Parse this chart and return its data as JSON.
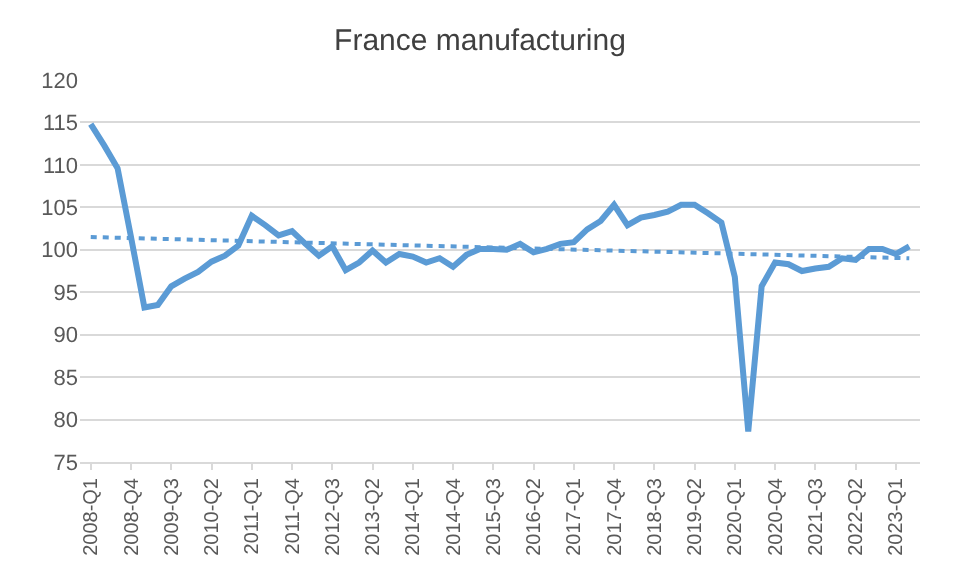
{
  "chart_data": {
    "type": "line",
    "title": "France manufacturing",
    "categories": [
      "2008-Q1",
      null,
      null,
      "2008-Q4",
      null,
      null,
      "2009-Q3",
      null,
      null,
      "2010-Q2",
      null,
      null,
      "2011-Q1",
      null,
      null,
      "2011-Q4",
      null,
      null,
      "2012-Q3",
      null,
      null,
      "2013-Q2",
      null,
      null,
      "2014-Q1",
      null,
      null,
      "2014-Q4",
      null,
      null,
      "2015-Q3",
      null,
      null,
      "2016-Q2",
      null,
      null,
      "2017-Q1",
      null,
      null,
      "2017-Q4",
      null,
      null,
      "2018-Q3",
      null,
      null,
      "2019-Q2",
      null,
      null,
      "2020-Q1",
      null,
      null,
      "2020-Q4",
      null,
      null,
      "2021-Q3",
      null,
      null,
      "2022-Q2",
      null,
      null,
      "2023-Q1",
      null
    ],
    "series": [
      {
        "color": "#5b9bd5",
        "line_style": "solid",
        "values": [
          114.8,
          112.3,
          109.6,
          101.5,
          93.2,
          93.5,
          95.7,
          96.6,
          97.4,
          98.6,
          99.3,
          100.5,
          104.0,
          102.9,
          101.7,
          102.2,
          100.7,
          99.3,
          100.4,
          97.6,
          98.5,
          99.9,
          98.5,
          99.5,
          99.2,
          98.5,
          99.0,
          98.0,
          99.4,
          100.1,
          100.1,
          100.0,
          100.7,
          99.7,
          100.1,
          100.7,
          100.9,
          102.4,
          103.4,
          105.3,
          102.9,
          103.8,
          104.1,
          104.5,
          105.3,
          105.3,
          104.3,
          103.2,
          96.8,
          78.6,
          95.7,
          98.5,
          98.3,
          97.5,
          97.8,
          98.0,
          99.0,
          98.8,
          100.1,
          100.1,
          99.5,
          100.4
        ]
      },
      {
        "color": "#5b9bd5",
        "line_style": "dotted",
        "values": [
          101.5,
          null,
          null,
          null,
          null,
          null,
          null,
          null,
          null,
          null,
          null,
          null,
          null,
          null,
          null,
          null,
          null,
          null,
          null,
          null,
          null,
          null,
          null,
          null,
          null,
          null,
          null,
          null,
          null,
          null,
          null,
          null,
          null,
          null,
          null,
          null,
          null,
          null,
          null,
          null,
          null,
          null,
          null,
          null,
          null,
          null,
          null,
          null,
          null,
          null,
          null,
          null,
          null,
          null,
          null,
          null,
          null,
          null,
          null,
          null,
          null,
          99.0
        ]
      }
    ],
    "ylim": [
      75,
      120
    ],
    "yticks": [
      75,
      80,
      85,
      90,
      95,
      100,
      105,
      110,
      115,
      120
    ],
    "grid": "y",
    "legend": false,
    "marker": "none"
  }
}
